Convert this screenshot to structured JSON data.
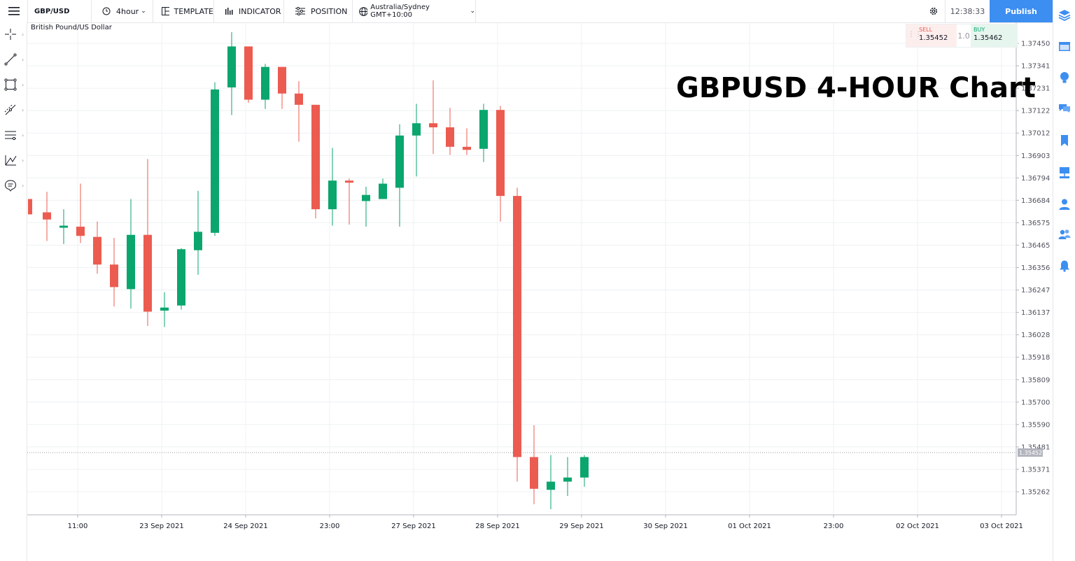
{
  "toolbar": {
    "symbol": "GBP/USD",
    "interval": "4hour",
    "template_label": "TEMPLATE",
    "indicator_label": "INDICATOR",
    "position_label": "POSITION",
    "timezone": "Australia/Sydney GMT+10:00",
    "clock": "12:38:33",
    "publish_label": "Publish"
  },
  "chart": {
    "symbol_name": "British Pound/US Dollar",
    "overlay_title": "GBPUSD 4-HOUR Chart",
    "current_price_label": "1.35452"
  },
  "trade": {
    "sell_label": "SELL",
    "sell_price": "1.35452",
    "quantity": "1.0",
    "buy_label": "BUY",
    "buy_price": "1.35462"
  },
  "colors": {
    "up": "#0aa66e",
    "down": "#ec5b50",
    "accent": "#3d8ef1"
  },
  "left_tools": [
    "crosshair-icon",
    "trend-line-icon",
    "rectangle-icon",
    "fib-tool-icon",
    "pattern-icon",
    "measure-icon",
    "annotation-icon"
  ],
  "right_tools": [
    "layers-icon",
    "calendar-icon",
    "ideas-icon",
    "chat-icon",
    "bookmark-icon",
    "screens-icon",
    "profile-icon",
    "community-icon",
    "alert-icon"
  ],
  "chart_data": {
    "type": "candlestick",
    "title": "GBPUSD 4-HOUR Chart",
    "ylim": [
      1.35152,
      1.37505
    ],
    "yticks": [
      "1.37450",
      "1.37341",
      "1.37231",
      "1.37122",
      "1.37012",
      "1.36903",
      "1.36794",
      "1.36684",
      "1.36575",
      "1.36465",
      "1.36356",
      "1.36247",
      "1.36137",
      "1.36028",
      "1.35918",
      "1.35809",
      "1.35700",
      "1.35590",
      "1.35481",
      "1.35371",
      "1.35262"
    ],
    "xticks": [
      "11:00",
      "23 Sep 2021",
      "24 Sep 2021",
      "23:00",
      "27 Sep 2021",
      "28 Sep 2021",
      "29 Sep 2021",
      "30 Sep 2021",
      "01 Oct 2021",
      "23:00",
      "02 Oct 2021",
      "03 Oct 2021"
    ],
    "last_price": 1.35452,
    "candles": [
      {
        "o": 1.3669,
        "h": 1.3669,
        "l": 1.36615,
        "c": 1.36615
      },
      {
        "o": 1.36625,
        "h": 1.36725,
        "l": 1.36485,
        "c": 1.3659
      },
      {
        "o": 1.3656,
        "h": 1.3664,
        "l": 1.3647,
        "c": 1.3656
      },
      {
        "o": 1.36555,
        "h": 1.36765,
        "l": 1.36475,
        "c": 1.3651
      },
      {
        "o": 1.36505,
        "h": 1.3658,
        "l": 1.36325,
        "c": 1.3637
      },
      {
        "o": 1.3637,
        "h": 1.365,
        "l": 1.36165,
        "c": 1.3626
      },
      {
        "o": 1.3625,
        "h": 1.3669,
        "l": 1.36155,
        "c": 1.36515
      },
      {
        "o": 1.36515,
        "h": 1.36885,
        "l": 1.3607,
        "c": 1.3614
      },
      {
        "o": 1.36145,
        "h": 1.36235,
        "l": 1.36065,
        "c": 1.3616
      },
      {
        "o": 1.3617,
        "h": 1.3645,
        "l": 1.3615,
        "c": 1.36445
      },
      {
        "o": 1.3644,
        "h": 1.3673,
        "l": 1.3632,
        "c": 1.3653
      },
      {
        "o": 1.36525,
        "h": 1.3726,
        "l": 1.3651,
        "c": 1.37225
      },
      {
        "o": 1.37235,
        "h": 1.37505,
        "l": 1.371,
        "c": 1.37435
      },
      {
        "o": 1.37435,
        "h": 1.37435,
        "l": 1.3716,
        "c": 1.37175
      },
      {
        "o": 1.37175,
        "h": 1.3735,
        "l": 1.3713,
        "c": 1.37335
      },
      {
        "o": 1.37335,
        "h": 1.37335,
        "l": 1.3713,
        "c": 1.37205
      },
      {
        "o": 1.37205,
        "h": 1.37265,
        "l": 1.3697,
        "c": 1.3715
      },
      {
        "o": 1.3715,
        "h": 1.3715,
        "l": 1.36595,
        "c": 1.3664
      },
      {
        "o": 1.3664,
        "h": 1.3694,
        "l": 1.3656,
        "c": 1.3678
      },
      {
        "o": 1.3678,
        "h": 1.3679,
        "l": 1.36565,
        "c": 1.36775
      },
      {
        "o": 1.3668,
        "h": 1.3675,
        "l": 1.36555,
        "c": 1.3671
      },
      {
        "o": 1.3669,
        "h": 1.3679,
        "l": 1.3669,
        "c": 1.36765
      },
      {
        "o": 1.36745,
        "h": 1.37055,
        "l": 1.36555,
        "c": 1.37
      },
      {
        "o": 1.37,
        "h": 1.37155,
        "l": 1.368,
        "c": 1.3706
      },
      {
        "o": 1.3706,
        "h": 1.3727,
        "l": 1.3691,
        "c": 1.3704
      },
      {
        "o": 1.3704,
        "h": 1.37135,
        "l": 1.36905,
        "c": 1.36945
      },
      {
        "o": 1.36945,
        "h": 1.37035,
        "l": 1.36905,
        "c": 1.3693
      },
      {
        "o": 1.36935,
        "h": 1.37155,
        "l": 1.3687,
        "c": 1.37125
      },
      {
        "o": 1.37125,
        "h": 1.37145,
        "l": 1.3658,
        "c": 1.36705
      },
      {
        "o": 1.36705,
        "h": 1.36745,
        "l": 1.3531,
        "c": 1.3543
      },
      {
        "o": 1.3543,
        "h": 1.35585,
        "l": 1.352,
        "c": 1.35275
      },
      {
        "o": 1.3527,
        "h": 1.3544,
        "l": 1.35175,
        "c": 1.3531
      },
      {
        "o": 1.3531,
        "h": 1.3543,
        "l": 1.3524,
        "c": 1.3533
      },
      {
        "o": 1.3533,
        "h": 1.3544,
        "l": 1.35285,
        "c": 1.3543
      }
    ]
  }
}
